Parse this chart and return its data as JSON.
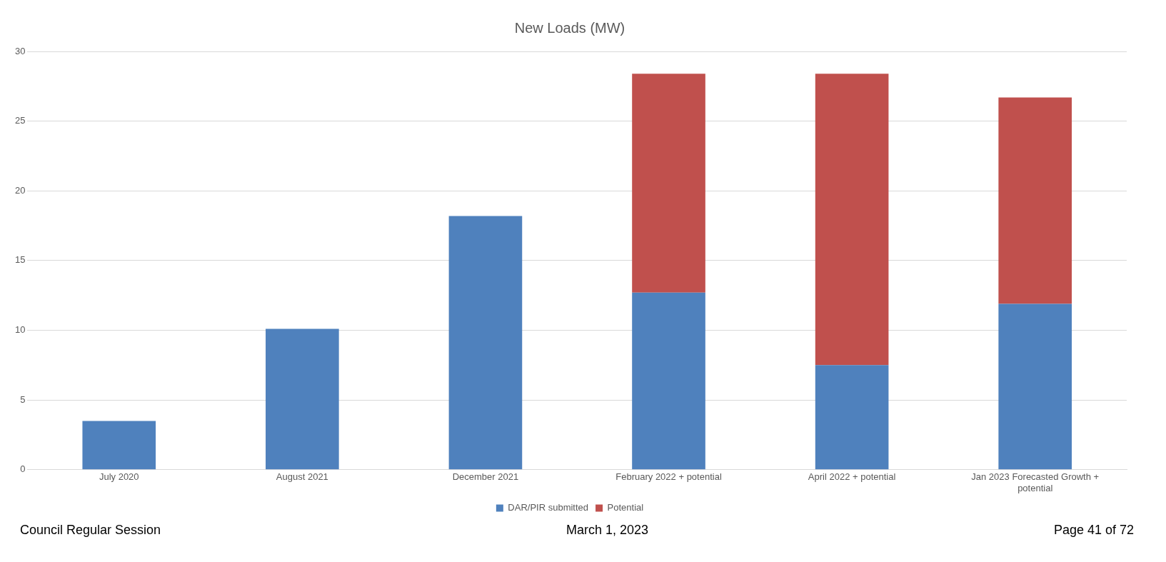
{
  "chart_data": {
    "type": "bar",
    "title": "New Loads (MW)",
    "categories": [
      "July 2020",
      "August 2021",
      "December 2021",
      "February 2022 + potential",
      "April 2022 + potential",
      "Jan 2023 Forecasted Growth + potential"
    ],
    "series": [
      {
        "name": "DAR/PIR submitted",
        "color": "#4f81bd",
        "values": [
          3.5,
          10.1,
          18.2,
          12.7,
          7.5,
          11.9
        ]
      },
      {
        "name": "Potential",
        "color": "#c0504d",
        "values": [
          null,
          null,
          null,
          15.7,
          20.9,
          14.8
        ]
      }
    ],
    "stacked": true,
    "ylim": [
      0,
      30
    ],
    "yticks": [
      0,
      5,
      10,
      15,
      20,
      25,
      30
    ],
    "grid": "y",
    "legend": "bottom",
    "annotations": [
      "Council Regular Session",
      "March 1, 2023",
      "Page 41 of 72"
    ]
  }
}
